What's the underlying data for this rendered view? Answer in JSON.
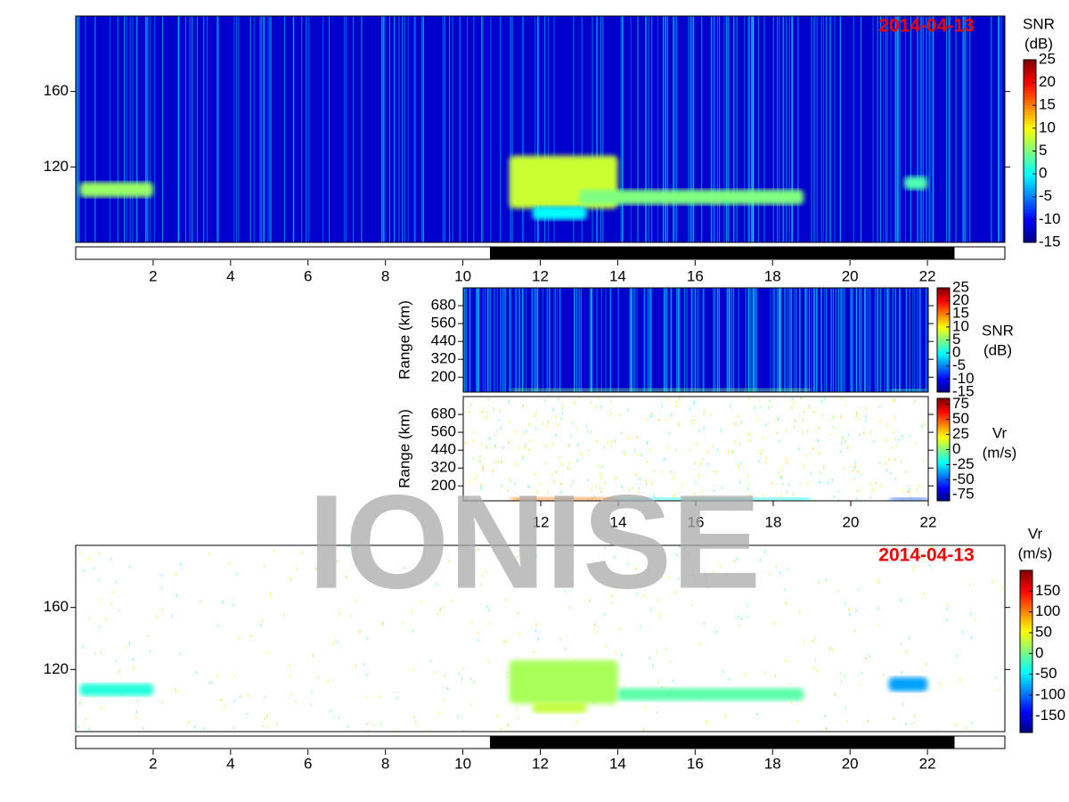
{
  "watermark": "IONISE",
  "chart_data": [
    {
      "type": "heatmap",
      "date_label": "2014-04-13",
      "colorbar_label": "SNR",
      "colorbar_unit": "(dB)",
      "xlim": [
        0,
        24
      ],
      "xticks": [
        2,
        4,
        6,
        8,
        10,
        12,
        14,
        16,
        18,
        20,
        22
      ],
      "ylim": [
        80,
        200
      ],
      "yticks": [
        120,
        160
      ],
      "clim": [
        -15,
        25
      ],
      "cticks": [
        -15,
        -10,
        -5,
        0,
        5,
        10,
        15,
        20,
        25
      ],
      "background": -12,
      "dark_interval": [
        10.7,
        22.7
      ],
      "echoes": [
        {
          "t": [
            0.1,
            2
          ],
          "r": [
            104,
            112
          ],
          "v": 6
        },
        {
          "t": [
            11.2,
            14
          ],
          "r": [
            98,
            126
          ],
          "v": 8
        },
        {
          "t": [
            13,
            18.8
          ],
          "r": [
            100,
            108
          ],
          "v": 5
        },
        {
          "t": [
            11.8,
            13.2
          ],
          "r": [
            92,
            99
          ],
          "v": 0
        },
        {
          "t": [
            21.4,
            22
          ],
          "r": [
            108,
            115
          ],
          "v": 3
        }
      ]
    },
    {
      "type": "heatmap",
      "y_label": "Range (km)",
      "colorbar_label": "SNR",
      "colorbar_unit": "(dB)",
      "xlim": [
        10,
        22
      ],
      "ylim": [
        100,
        800
      ],
      "yticks": [
        200,
        320,
        440,
        560,
        680
      ],
      "clim": [
        -15,
        25
      ],
      "cticks": [
        -15,
        -10,
        -5,
        0,
        5,
        10,
        15,
        20,
        25
      ],
      "background": -12,
      "echoes": [
        {
          "t": [
            11.2,
            19
          ],
          "r": [
            110,
            125
          ],
          "v": 5
        },
        {
          "t": [
            21,
            22
          ],
          "r": [
            110,
            120
          ],
          "v": 3
        }
      ]
    },
    {
      "type": "heatmap",
      "y_label": "Range (km)",
      "colorbar_label": "Vr",
      "colorbar_unit": "(m/s)",
      "xlim": [
        10,
        22
      ],
      "xticks": [
        12,
        14,
        16,
        18,
        20,
        22
      ],
      "ylim": [
        100,
        800
      ],
      "yticks": [
        200,
        320,
        440,
        560,
        680
      ],
      "clim": [
        -85,
        85
      ],
      "cticks": [
        -75,
        -50,
        -25,
        0,
        25,
        50,
        75
      ],
      "echoes": [
        {
          "t": [
            11.2,
            14
          ],
          "r": [
            110,
            125
          ],
          "v": 45
        },
        {
          "t": [
            14,
            19
          ],
          "r": [
            110,
            122
          ],
          "v": -20
        },
        {
          "t": [
            21,
            22
          ],
          "r": [
            110,
            120
          ],
          "v": -50
        }
      ]
    },
    {
      "type": "heatmap",
      "date_label": "2014-04-13",
      "colorbar_label": "Vr",
      "colorbar_unit": "(m/s)",
      "xlim": [
        0,
        24
      ],
      "xticks": [
        2,
        4,
        6,
        8,
        10,
        12,
        14,
        16,
        18,
        20,
        22
      ],
      "ylim": [
        80,
        200
      ],
      "yticks": [
        120,
        160
      ],
      "clim": [
        -190,
        200
      ],
      "cticks": [
        -150,
        -100,
        -50,
        0,
        50,
        100,
        150
      ],
      "dark_interval": [
        10.7,
        22.7
      ],
      "echoes": [
        {
          "t": [
            0.1,
            2
          ],
          "r": [
            103,
            111
          ],
          "v": -30
        },
        {
          "t": [
            11.2,
            14
          ],
          "r": [
            98,
            126
          ],
          "v": 20
        },
        {
          "t": [
            14,
            18.8
          ],
          "r": [
            100,
            108
          ],
          "v": -10
        },
        {
          "t": [
            11.8,
            13.2
          ],
          "r": [
            92,
            99
          ],
          "v": 30
        },
        {
          "t": [
            21,
            22
          ],
          "r": [
            106,
            115
          ],
          "v": -80
        }
      ]
    }
  ]
}
